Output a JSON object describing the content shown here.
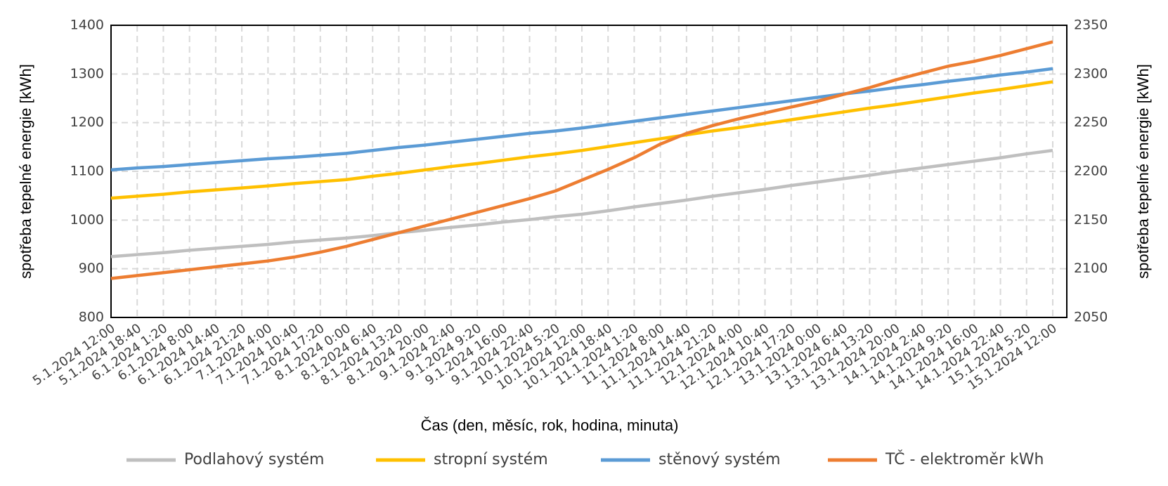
{
  "chart_data": {
    "type": "line",
    "categories": [
      "5.1.2024 12:00",
      "5.1.2024 18:40",
      "6.1.2024 1:20",
      "6.1.2024 8:00",
      "6.1.2024 14:40",
      "6.1.2024 21:20",
      "7.1.2024 4:00",
      "7.1.2024 10:40",
      "7.1.2024 17:20",
      "8.1.2024 0:00",
      "8.1.2024 6:40",
      "8.1.2024 13:20",
      "8.1.2024 20:00",
      "9.1.2024 2:40",
      "9.1.2024 9:20",
      "9.1.2024 16:00",
      "9.1.2024 22:40",
      "10.1.2024 5:20",
      "10.1.2024 12:00",
      "10.1.2024 18:40",
      "11.1.2024 1:20",
      "11.1.2024 8:00",
      "11.1.2024 14:40",
      "11.1.2024 21:20",
      "12.1.2024 4:00",
      "12.1.2024 10:40",
      "12.1.2024 17:20",
      "13.1.2024 0:00",
      "13.1.2024 6:40",
      "13.1.2024 13:20",
      "13.1.2024 20:00",
      "14.1.2024 2:40",
      "14.1.2024 9:20",
      "14.1.2024 16:00",
      "14.1.2024 22:40",
      "15.1.2024 5:20",
      "15.1.2024 12:00"
    ],
    "series": [
      {
        "name": "Podlahový systém",
        "color": "#bfbfbf",
        "values": [
          925,
          929,
          933,
          938,
          942,
          946,
          950,
          955,
          959,
          963,
          968,
          974,
          979,
          985,
          990,
          996,
          1001,
          1007,
          1012,
          1019,
          1027,
          1034,
          1041,
          1049,
          1056,
          1063,
          1071,
          1078,
          1085,
          1092,
          1100,
          1107,
          1114,
          1121,
          1128,
          1136,
          1143
        ]
      },
      {
        "name": "stropní  systém",
        "color": "#ffc000",
        "values": [
          1045,
          1049,
          1053,
          1058,
          1062,
          1066,
          1070,
          1075,
          1079,
          1083,
          1090,
          1096,
          1103,
          1110,
          1116,
          1123,
          1130,
          1136,
          1143,
          1151,
          1159,
          1167,
          1175,
          1183,
          1190,
          1198,
          1206,
          1214,
          1222,
          1230,
          1237,
          1245,
          1253,
          1261,
          1268,
          1276,
          1284
        ]
      },
      {
        "name": "stěnový systém",
        "color": "#5b9bd5",
        "values": [
          1103,
          1107,
          1110,
          1114,
          1118,
          1122,
          1126,
          1129,
          1133,
          1137,
          1143,
          1149,
          1154,
          1160,
          1166,
          1172,
          1178,
          1183,
          1189,
          1196,
          1203,
          1210,
          1217,
          1224,
          1231,
          1238,
          1245,
          1252,
          1259,
          1265,
          1272,
          1278,
          1285,
          1291,
          1298,
          1304,
          1311
        ]
      },
      {
        "name": "TČ - elektroměr  kWh",
        "color": "#ed7d31",
        "axis": "y2",
        "values": [
          2090,
          2093,
          2096,
          2099,
          2102,
          2105,
          2108,
          2112,
          2117,
          2123,
          2130,
          2137,
          2144,
          2151,
          2158,
          2165,
          2172,
          2180,
          2191,
          2202,
          2214,
          2228,
          2239,
          2247,
          2254,
          2260,
          2266,
          2272,
          2279,
          2286,
          2294,
          2301,
          2308,
          2313,
          2319,
          2326,
          2333
        ]
      }
    ],
    "xlabel": "Čas (den, měsíc, rok, hodina, minuta)",
    "ylabel": "spotřeba tepelné energie    [kWh]",
    "y2label": "spotřeba tepelné energie    [kWh]",
    "ylim": [
      800,
      1400
    ],
    "yticks": [
      800,
      900,
      1000,
      1100,
      1200,
      1300,
      1400
    ],
    "y2lim": [
      2050,
      2350
    ],
    "y2ticks": [
      2050,
      2100,
      2150,
      2200,
      2250,
      2300,
      2350
    ],
    "grid": true,
    "legend": "bottom"
  }
}
